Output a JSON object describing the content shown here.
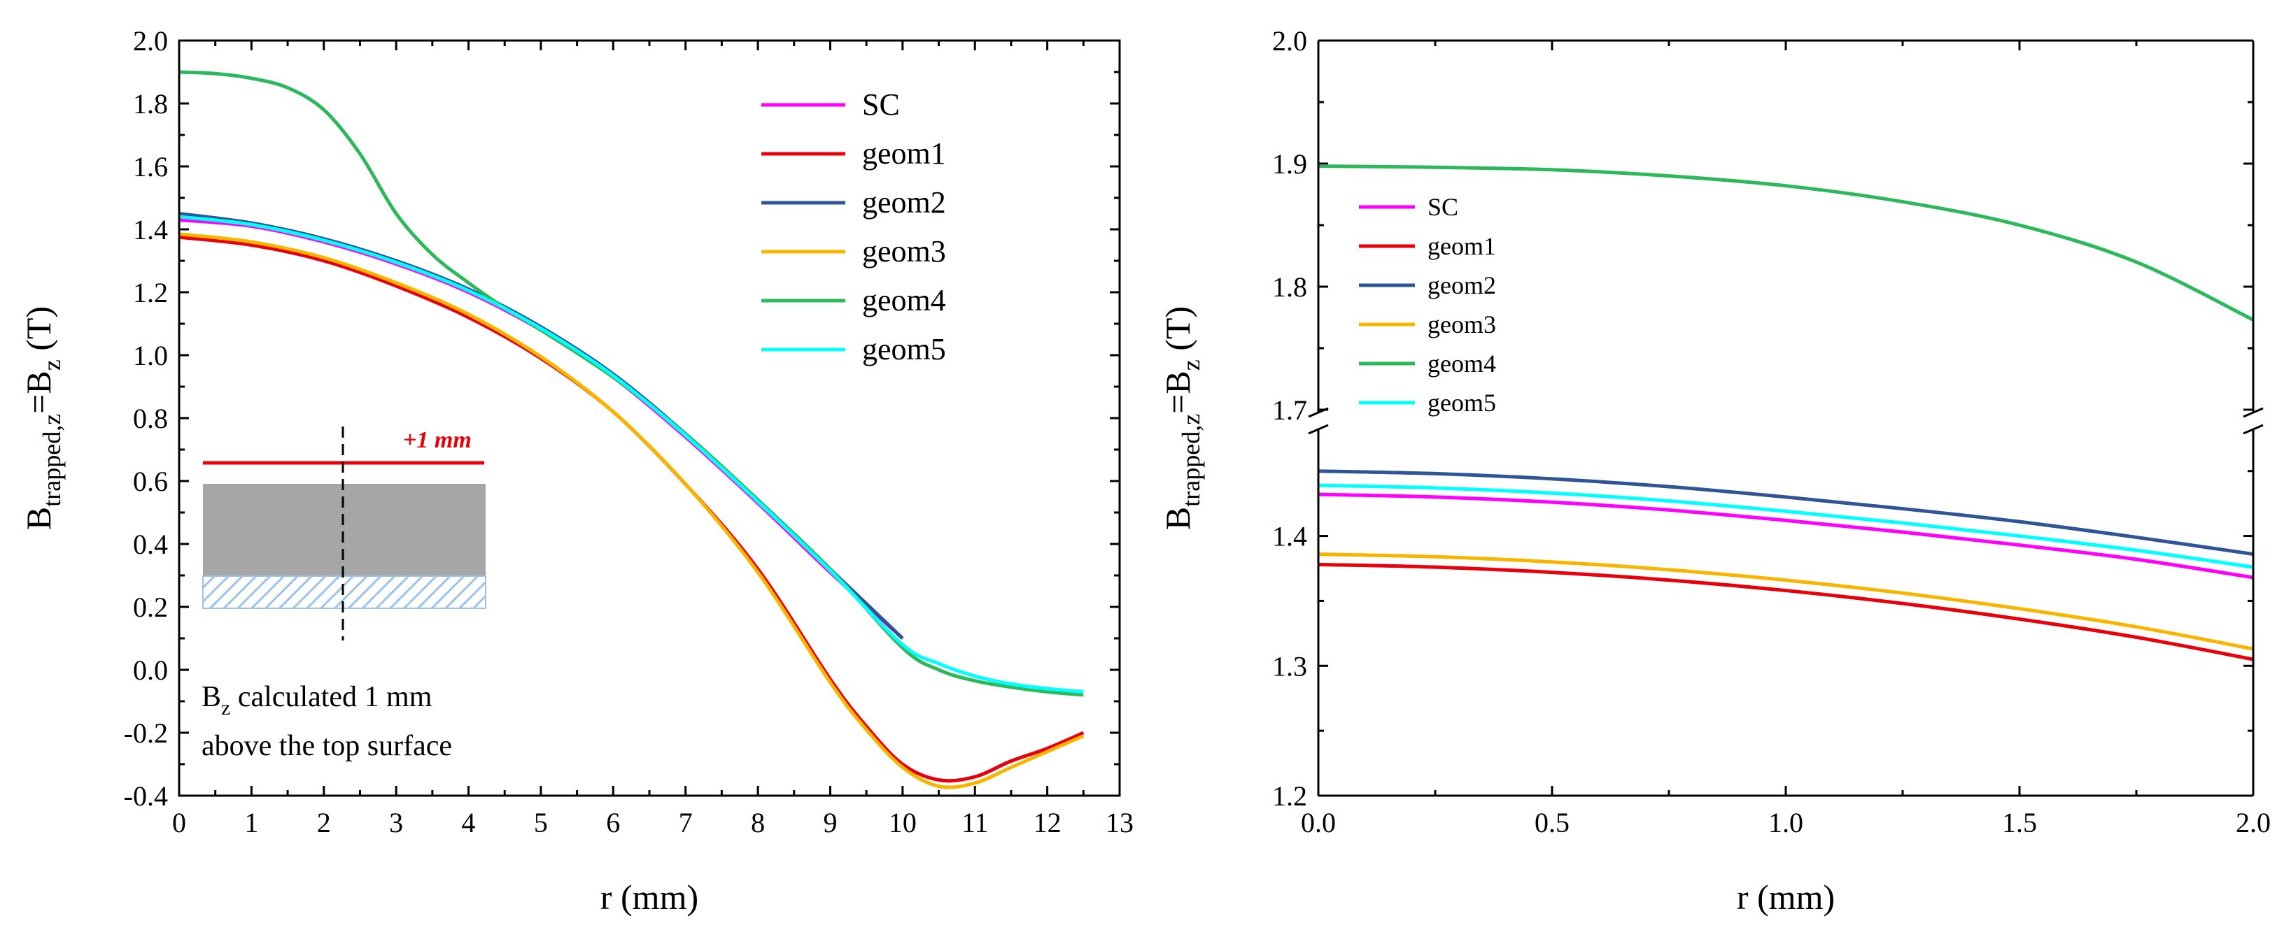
{
  "chart_data": [
    {
      "type": "line",
      "panel": "left",
      "xlabel": "r (mm)",
      "ylabel": "B_trapped,z = B_z (T)",
      "ylabel_parts": {
        "main": "B",
        "sub": "trapped,z",
        "eq": "=B",
        "sub2": "z",
        "unit": " (T)"
      },
      "xlabel_text": "r (mm)",
      "xlim": [
        0,
        13
      ],
      "ylim": [
        -0.4,
        2.0
      ],
      "xticks": [
        "0",
        "1",
        "2",
        "3",
        "4",
        "5",
        "6",
        "7",
        "8",
        "9",
        "10",
        "11",
        "12",
        "13"
      ],
      "yticks": [
        "-0.4",
        "-0.2",
        "0.0",
        "0.2",
        "0.4",
        "0.6",
        "0.8",
        "1.0",
        "1.2",
        "1.4",
        "1.6",
        "1.8",
        "2.0"
      ],
      "legend_position": "top-right",
      "annotation": {
        "line1_main": "B",
        "line1_sub": "z",
        "line1_rest": " calculated 1 mm",
        "line2": "above the top surface",
        "inset_label": "+1 mm"
      },
      "series": [
        {
          "name": "SC",
          "color": "#FF00FF",
          "x": [
            0,
            1,
            2,
            3,
            4,
            5,
            6,
            7,
            8,
            9,
            10
          ],
          "y": [
            1.43,
            1.41,
            1.36,
            1.29,
            1.2,
            1.08,
            0.93,
            0.74,
            0.53,
            0.31,
            0.1
          ]
        },
        {
          "name": "geom1",
          "color": "#E8000B",
          "x": [
            0,
            1,
            2,
            3,
            4,
            5,
            6,
            7,
            8,
            9,
            9.5,
            10,
            10.5,
            11,
            11.5,
            12,
            12.5
          ],
          "y": [
            1.375,
            1.35,
            1.3,
            1.22,
            1.12,
            0.99,
            0.82,
            0.59,
            0.32,
            -0.03,
            -0.18,
            -0.3,
            -0.35,
            -0.34,
            -0.29,
            -0.25,
            -0.2
          ]
        },
        {
          "name": "geom2",
          "color": "#2F5597",
          "x": [
            0,
            1,
            2,
            3,
            4,
            5,
            6,
            7,
            8,
            9,
            10
          ],
          "y": [
            1.45,
            1.42,
            1.37,
            1.3,
            1.21,
            1.09,
            0.94,
            0.75,
            0.54,
            0.32,
            0.1
          ]
        },
        {
          "name": "geom3",
          "color": "#F7B500",
          "x": [
            0,
            1,
            2,
            3,
            4,
            5,
            6,
            7,
            8,
            9,
            9.5,
            10,
            10.5,
            11,
            11.5,
            12,
            12.5
          ],
          "y": [
            1.385,
            1.36,
            1.31,
            1.23,
            1.13,
            0.995,
            0.82,
            0.59,
            0.31,
            -0.04,
            -0.19,
            -0.31,
            -0.37,
            -0.36,
            -0.31,
            -0.26,
            -0.21
          ]
        },
        {
          "name": "geom4",
          "color": "#2EB85C",
          "x": [
            0,
            0.5,
            1,
            1.5,
            2,
            2.5,
            3,
            3.5,
            4,
            4.5,
            5,
            6,
            7,
            8,
            9,
            10,
            10.5,
            11,
            11.5,
            12,
            12.5
          ],
          "y": [
            1.9,
            1.895,
            1.88,
            1.85,
            1.78,
            1.64,
            1.45,
            1.32,
            1.23,
            1.15,
            1.08,
            0.93,
            0.75,
            0.54,
            0.32,
            0.07,
            0.0,
            -0.035,
            -0.055,
            -0.07,
            -0.08
          ]
        },
        {
          "name": "geom5",
          "color": "#00FFFF",
          "x": [
            0,
            1,
            2,
            3,
            4,
            5,
            6,
            7,
            8,
            9,
            10,
            10.5,
            11,
            11.5,
            12,
            12.5
          ],
          "y": [
            1.44,
            1.415,
            1.365,
            1.295,
            1.205,
            1.085,
            0.935,
            0.745,
            0.535,
            0.315,
            0.08,
            0.02,
            -0.02,
            -0.045,
            -0.06,
            -0.07
          ]
        }
      ]
    },
    {
      "type": "line",
      "panel": "right",
      "xlabel": "r (mm)",
      "ylabel": "B_trapped,z = B_z (T)",
      "xlim": [
        0,
        2.0
      ],
      "ylim_lower": [
        1.2,
        1.48
      ],
      "ylim_upper": [
        1.7,
        2.0
      ],
      "axis_break": [
        1.48,
        1.7
      ],
      "xticks": [
        "0.0",
        "0.5",
        "1.0",
        "1.5",
        "2.0"
      ],
      "yticks_lower": [
        "1.2",
        "1.3",
        "1.4"
      ],
      "yticks_upper": [
        "1.7",
        "1.8",
        "1.9",
        "2.0"
      ],
      "legend_position": "left",
      "series": [
        {
          "name": "SC",
          "color": "#FF00FF",
          "x": [
            0,
            0.25,
            0.5,
            0.75,
            1.0,
            1.25,
            1.5,
            1.75,
            2.0
          ],
          "y": [
            1.432,
            1.43,
            1.426,
            1.42,
            1.412,
            1.403,
            1.393,
            1.382,
            1.368
          ]
        },
        {
          "name": "geom1",
          "color": "#E8000B",
          "x": [
            0,
            0.25,
            0.5,
            0.75,
            1.0,
            1.25,
            1.5,
            1.75,
            2.0
          ],
          "y": [
            1.378,
            1.376,
            1.372,
            1.366,
            1.358,
            1.348,
            1.336,
            1.322,
            1.305
          ]
        },
        {
          "name": "geom2",
          "color": "#2F5597",
          "x": [
            0,
            0.25,
            0.5,
            0.75,
            1.0,
            1.25,
            1.5,
            1.75,
            2.0
          ],
          "y": [
            1.45,
            1.448,
            1.444,
            1.438,
            1.43,
            1.421,
            1.411,
            1.399,
            1.386
          ]
        },
        {
          "name": "geom3",
          "color": "#F7B500",
          "x": [
            0,
            0.25,
            0.5,
            0.75,
            1.0,
            1.25,
            1.5,
            1.75,
            2.0
          ],
          "y": [
            1.386,
            1.384,
            1.38,
            1.374,
            1.366,
            1.356,
            1.344,
            1.33,
            1.313
          ]
        },
        {
          "name": "geom4",
          "color": "#2EB85C",
          "x": [
            0,
            0.25,
            0.5,
            0.75,
            1.0,
            1.25,
            1.5,
            1.75,
            2.0
          ],
          "y": [
            1.898,
            1.897,
            1.895,
            1.89,
            1.882,
            1.869,
            1.85,
            1.82,
            1.773
          ]
        },
        {
          "name": "geom5",
          "color": "#00FFFF",
          "x": [
            0,
            0.25,
            0.5,
            0.75,
            1.0,
            1.25,
            1.5,
            1.75,
            2.0
          ],
          "y": [
            1.439,
            1.437,
            1.433,
            1.427,
            1.419,
            1.41,
            1.4,
            1.389,
            1.376
          ]
        }
      ]
    }
  ]
}
